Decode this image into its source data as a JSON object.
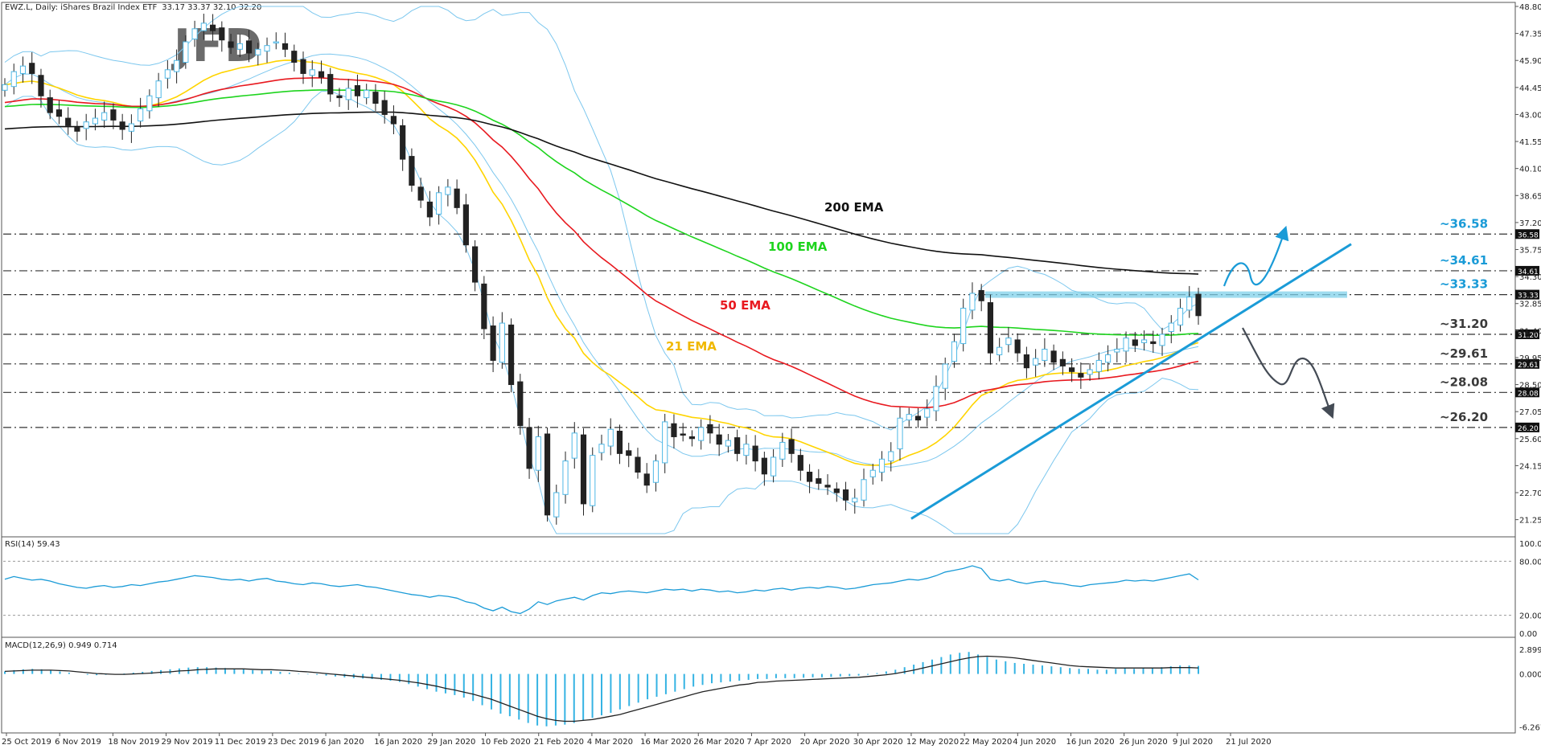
{
  "window": {
    "title": "EWZ.L, Daily: iShares Brazil Index ETF",
    "ohlc": "33.17 33.37 32.10 32.20"
  },
  "logo_text": "JFD",
  "chart_data": {
    "type": "candlestick",
    "symbol": "EWZ.L",
    "timeframe": "Daily",
    "title": "EWZ.L, Daily: iShares Brazil Index ETF  33.17 33.37 32.10 32.20",
    "ylim": [
      20.5,
      48.8
    ],
    "price_ticks": [
      "48.80",
      "47.35",
      "45.90",
      "44.45",
      "43.00",
      "41.55",
      "40.10",
      "38.65",
      "37.20",
      "35.75",
      "34.30",
      "32.85",
      "31.40",
      "29.95",
      "28.50",
      "27.05",
      "25.60",
      "24.15",
      "22.70",
      "21.25"
    ],
    "x_labels": [
      "25 Oct 2019",
      "6 Nov 2019",
      "18 Nov 2019",
      "29 Nov 2019",
      "11 Dec 2019",
      "23 Dec 2019",
      "6 Jan 2020",
      "16 Jan 2020",
      "29 Jan 2020",
      "10 Feb 2020",
      "21 Feb 2020",
      "4 Mar 2020",
      "16 Mar 2020",
      "26 Mar 2020",
      "7 Apr 2020",
      "20 Apr 2020",
      "30 Apr 2020",
      "12 May 2020",
      "22 May 2020",
      "4 Jun 2020",
      "16 Jun 2020",
      "26 Jun 2020",
      "9 Jul 2020",
      "21 Jul 2020"
    ],
    "price_close": [
      44.6,
      45.3,
      45.6,
      45.2,
      44.0,
      43.1,
      42.9,
      42.4,
      42.1,
      42.6,
      42.8,
      43.1,
      42.7,
      42.2,
      42.5,
      43.3,
      44.0,
      44.8,
      45.4,
      45.9,
      46.9,
      47.6,
      47.9,
      47.5,
      47.0,
      46.6,
      46.8,
      46.3,
      46.5,
      46.7,
      46.9,
      46.5,
      45.8,
      45.2,
      45.4,
      45.0,
      44.1,
      43.9,
      44.4,
      44.0,
      44.3,
      43.6,
      43.0,
      42.5,
      40.6,
      39.2,
      38.4,
      37.5,
      38.8,
      39.1,
      38.0,
      36.0,
      34.0,
      31.5,
      29.8,
      31.8,
      28.5,
      26.3,
      24.0,
      25.7,
      21.5,
      22.7,
      24.4,
      25.9,
      22.1,
      24.7,
      25.3,
      26.1,
      24.8,
      24.7,
      23.8,
      23.1,
      24.4,
      26.5,
      25.7,
      25.8,
      25.6,
      26.2,
      25.9,
      25.3,
      25.5,
      24.8,
      25.3,
      24.4,
      23.7,
      24.6,
      25.4,
      24.8,
      23.9,
      23.3,
      23.2,
      23.0,
      22.7,
      22.3,
      22.4,
      23.4,
      23.9,
      24.5,
      24.9,
      26.7,
      26.9,
      26.6,
      27.2,
      28.4,
      29.6,
      30.8,
      32.6,
      33.4,
      33.0,
      30.2,
      30.5,
      31.0,
      30.2,
      29.4,
      29.9,
      30.4,
      29.7,
      29.5,
      29.2,
      28.9,
      29.3,
      29.8,
      30.1,
      30.4,
      31.0,
      30.6,
      30.9,
      30.7,
      31.2,
      31.8,
      32.6,
      33.2,
      32.2
    ],
    "series": [
      {
        "name": "21 EMA",
        "color": "#ffd400"
      },
      {
        "name": "50 EMA",
        "color": "#e8191f"
      },
      {
        "name": "100 EMA",
        "color": "#1ed41e"
      },
      {
        "name": "200 EMA",
        "color": "#111111"
      }
    ],
    "levels": [
      {
        "label": "~36.58",
        "value": 36.58,
        "tag": "36.58"
      },
      {
        "label": "~34.61",
        "value": 34.61,
        "tag": "34.61"
      },
      {
        "label": "~33.33",
        "value": 33.33,
        "tag": "33.33"
      },
      {
        "label": "~31.20",
        "value": 31.2,
        "tag": "31.20"
      },
      {
        "label": "~29.61",
        "value": 29.61,
        "tag": "29.61"
      },
      {
        "label": "~28.08",
        "value": 28.08,
        "tag": "28.08"
      },
      {
        "label": "~26.20",
        "value": 26.2,
        "tag": "26.20"
      }
    ],
    "uptrend_line": {
      "from": {
        "x_label": "12 May 2020",
        "y": 21.3
      },
      "to": {
        "x_label": "21 Jul 2020",
        "y": 32.0
      }
    },
    "rsi": {
      "label": "RSI(14) 59.43",
      "ticks": [
        "100.00",
        "80.00",
        "20.00",
        "0.00"
      ],
      "levels": [
        80,
        20
      ],
      "values": [
        60,
        63,
        61,
        59,
        60,
        58,
        55,
        53,
        51,
        50,
        52,
        53,
        51,
        52,
        54,
        53,
        55,
        57,
        58,
        60,
        62,
        64,
        63,
        62,
        60,
        59,
        60,
        58,
        60,
        61,
        58,
        57,
        55,
        54,
        56,
        55,
        53,
        52,
        53,
        54,
        52,
        51,
        49,
        47,
        45,
        43,
        42,
        40,
        42,
        41,
        39,
        35,
        33,
        28,
        25,
        29,
        24,
        22,
        27,
        35,
        32,
        36,
        38,
        40,
        37,
        42,
        45,
        44,
        46,
        47,
        46,
        45,
        47,
        49,
        48,
        49,
        47,
        49,
        48,
        46,
        47,
        45,
        46,
        48,
        47,
        49,
        50,
        48,
        50,
        51,
        50,
        52,
        51,
        49,
        50,
        52,
        54,
        55,
        56,
        58,
        60,
        59,
        61,
        64,
        68,
        70,
        72,
        75,
        72,
        60,
        58,
        60,
        57,
        55,
        57,
        58,
        56,
        55,
        53,
        52,
        54,
        55,
        56,
        57,
        59,
        58,
        59,
        58,
        60,
        62,
        64,
        66,
        59.4
      ]
    },
    "macd": {
      "label": "MACD(12,26,9) 0.949 0.714",
      "ticks": [
        "2.899",
        "0.000",
        "-6.267"
      ],
      "ylim": [
        -6.6,
        3.1
      ],
      "hist": [
        0.3,
        0.45,
        0.55,
        0.6,
        0.55,
        0.45,
        0.3,
        0.15,
        0.0,
        -0.1,
        -0.15,
        -0.1,
        -0.05,
        0.05,
        0.15,
        0.25,
        0.35,
        0.45,
        0.55,
        0.65,
        0.75,
        0.8,
        0.8,
        0.75,
        0.7,
        0.6,
        0.55,
        0.45,
        0.4,
        0.35,
        0.25,
        0.15,
        0.05,
        -0.05,
        -0.1,
        -0.2,
        -0.3,
        -0.4,
        -0.5,
        -0.55,
        -0.6,
        -0.7,
        -0.8,
        -0.95,
        -1.2,
        -1.5,
        -1.8,
        -2.1,
        -2.3,
        -2.5,
        -2.8,
        -3.2,
        -3.7,
        -4.2,
        -4.7,
        -5.0,
        -5.4,
        -5.8,
        -6.1,
        -6.2,
        -6.1,
        -6.0,
        -5.8,
        -5.5,
        -5.2,
        -4.9,
        -4.6,
        -4.2,
        -3.8,
        -3.4,
        -3.0,
        -2.7,
        -2.4,
        -2.1,
        -1.8,
        -1.5,
        -1.3,
        -1.1,
        -1.0,
        -0.9,
        -0.8,
        -0.7,
        -0.6,
        -0.6,
        -0.5,
        -0.5,
        -0.5,
        -0.45,
        -0.4,
        -0.4,
        -0.35,
        -0.3,
        -0.25,
        -0.2,
        -0.1,
        0.1,
        0.3,
        0.5,
        0.8,
        1.1,
        1.4,
        1.7,
        2.0,
        2.3,
        2.5,
        2.6,
        2.3,
        2.0,
        1.7,
        1.5,
        1.3,
        1.2,
        1.1,
        1.0,
        0.9,
        0.8,
        0.7,
        0.6,
        0.6,
        0.5,
        0.5,
        0.6,
        0.7,
        0.6,
        0.7,
        0.7,
        0.8,
        0.9,
        1.0,
        1.0,
        0.95
      ],
      "signal": [
        0.3,
        0.35,
        0.4,
        0.45,
        0.45,
        0.45,
        0.4,
        0.35,
        0.25,
        0.15,
        0.05,
        0.0,
        -0.05,
        -0.05,
        0.0,
        0.05,
        0.1,
        0.2,
        0.25,
        0.35,
        0.4,
        0.5,
        0.55,
        0.6,
        0.6,
        0.6,
        0.6,
        0.55,
        0.5,
        0.5,
        0.45,
        0.4,
        0.3,
        0.25,
        0.15,
        0.05,
        -0.05,
        -0.15,
        -0.25,
        -0.35,
        -0.45,
        -0.55,
        -0.65,
        -0.75,
        -0.9,
        -1.05,
        -1.25,
        -1.45,
        -1.7,
        -1.9,
        -2.15,
        -2.4,
        -2.7,
        -3.0,
        -3.4,
        -3.8,
        -4.2,
        -4.6,
        -5.0,
        -5.3,
        -5.5,
        -5.6,
        -5.6,
        -5.5,
        -5.4,
        -5.2,
        -5.0,
        -4.8,
        -4.5,
        -4.2,
        -3.9,
        -3.6,
        -3.3,
        -3.0,
        -2.7,
        -2.4,
        -2.1,
        -1.9,
        -1.7,
        -1.5,
        -1.3,
        -1.2,
        -1.0,
        -0.95,
        -0.85,
        -0.8,
        -0.75,
        -0.7,
        -0.65,
        -0.6,
        -0.55,
        -0.5,
        -0.45,
        -0.4,
        -0.3,
        -0.2,
        -0.1,
        0.05,
        0.25,
        0.45,
        0.7,
        0.95,
        1.2,
        1.45,
        1.7,
        1.9,
        2.05,
        2.1,
        2.05,
        2.0,
        1.9,
        1.75,
        1.6,
        1.45,
        1.3,
        1.15,
        1.0,
        0.9,
        0.85,
        0.8,
        0.75,
        0.7,
        0.7,
        0.7,
        0.7,
        0.7,
        0.7,
        0.75,
        0.75,
        0.75,
        0.71
      ]
    }
  }
}
